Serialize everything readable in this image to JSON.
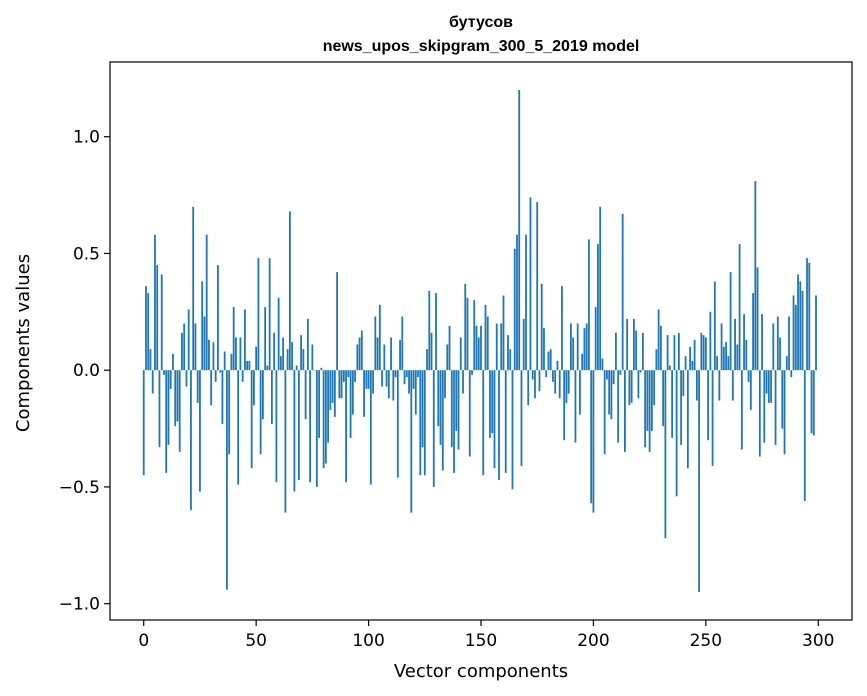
{
  "chart_data": {
    "type": "bar",
    "title": "бутусов",
    "subtitle": "news_upos_skipgram_300_5_2019 model",
    "xlabel": "Vector components",
    "ylabel": "Components values",
    "xlim": [
      -15,
      315
    ],
    "ylim": [
      -1.07,
      1.32
    ],
    "xticks": [
      0,
      50,
      100,
      150,
      200,
      250,
      300
    ],
    "yticks": [
      -1.0,
      -0.5,
      0.0,
      0.5,
      1.0
    ],
    "xtick_labels": [
      "0",
      "50",
      "100",
      "150",
      "200",
      "250",
      "300"
    ],
    "ytick_labels": [
      "−1.0",
      "−0.5",
      "0.0",
      "0.5",
      "1.0"
    ],
    "bar_color": "#1f77b4",
    "grid": false,
    "x_start": 0,
    "values": [
      -0.45,
      0.36,
      0.33,
      0.09,
      -0.1,
      0.58,
      0.45,
      -0.33,
      0.41,
      -0.02,
      -0.44,
      -0.32,
      -0.08,
      0.07,
      -0.24,
      -0.22,
      -0.35,
      0.16,
      0.2,
      -0.07,
      0.26,
      -0.6,
      0.7,
      0.2,
      -0.14,
      -0.52,
      0.38,
      0.23,
      0.58,
      0.13,
      -0.15,
      0.12,
      -0.05,
      0.45,
      -0.01,
      -0.23,
      0.08,
      -0.94,
      -0.36,
      0.07,
      0.27,
      0.14,
      -0.49,
      0.14,
      -0.05,
      0.26,
      0.04,
      0.04,
      -0.42,
      -0.15,
      0.1,
      0.48,
      -0.36,
      -0.21,
      0.27,
      0.02,
      0.48,
      -0.23,
      0.16,
      -0.48,
      0.31,
      0.06,
      0.14,
      -0.61,
      0.09,
      0.68,
      0.12,
      -0.52,
      0.02,
      -0.47,
      0.15,
      0.09,
      -0.21,
      0.22,
      -0.48,
      0.11,
      0.0,
      -0.5,
      -0.29,
      0.01,
      -0.42,
      -0.4,
      -0.31,
      -0.17,
      -0.14,
      -0.2,
      0.42,
      -0.12,
      -0.12,
      -0.05,
      -0.48,
      -0.03,
      -0.29,
      -0.19,
      -0.05,
      0.11,
      0.14,
      0.17,
      -0.2,
      -0.08,
      -0.08,
      -0.49,
      -0.1,
      0.23,
      0.14,
      0.28,
      -0.07,
      0.11,
      -0.07,
      -0.12,
      0.14,
      -0.13,
      -0.03,
      -0.46,
      0.13,
      0.23,
      -0.06,
      -0.03,
      -0.1,
      -0.61,
      -0.08,
      -0.19,
      -0.03,
      -0.45,
      -0.33,
      -0.45,
      0.09,
      0.34,
      0.16,
      -0.5,
      0.33,
      -0.24,
      -0.32,
      -0.43,
      -0.12,
      0.11,
      0.19,
      -0.33,
      -0.44,
      -0.26,
      -0.34,
      0.14,
      -0.1,
      0.37,
      0.31,
      -0.37,
      -0.02,
      0.3,
      0.19,
      0.14,
      0.19,
      -0.45,
      0.28,
      0.23,
      -0.29,
      -0.27,
      -0.42,
      0.2,
      -0.47,
      0.2,
      0.32,
      -0.44,
      0.15,
      0.09,
      -0.51,
      0.52,
      0.58,
      1.2,
      -0.41,
      0.22,
      0.58,
      -0.15,
      0.74,
      -0.04,
      -0.12,
      0.72,
      -0.09,
      0.37,
      0.18,
      -0.03,
      0.08,
      0.09,
      -0.05,
      -0.1,
      0.04,
      -0.12,
      0.36,
      -0.3,
      -0.14,
      -0.1,
      0.2,
      0.14,
      -0.31,
      0.2,
      -0.19,
      0.07,
      0.18,
      0.2,
      0.56,
      -0.57,
      -0.61,
      0.27,
      0.54,
      0.7,
      0.05,
      -0.36,
      -0.04,
      -0.19,
      -0.21,
      -0.06,
      0.16,
      -0.31,
      -0.02,
      0.67,
      -0.35,
      0.22,
      -0.15,
      -0.14,
      0.22,
      0.17,
      -0.12,
      -0.01,
      0.16,
      -0.33,
      -0.26,
      -0.35,
      -0.26,
      -0.15,
      0.09,
      0.26,
      0.19,
      -0.24,
      -0.72,
      0.15,
      0.02,
      -0.29,
      0.15,
      -0.54,
      0.16,
      -0.32,
      -0.11,
      0.06,
      -0.42,
      0.1,
      0.04,
      0.13,
      -0.13,
      -0.95,
      0.16,
      0.15,
      0.14,
      -0.3,
      0.25,
      -0.41,
      0.38,
      0.06,
      -0.13,
      0.2,
      0.1,
      0.12,
      0.06,
      0.42,
      -0.13,
      0.22,
      0.11,
      0.54,
      -0.34,
      0.24,
      0.13,
      -0.05,
      -0.17,
      0.33,
      0.81,
      0.44,
      -0.37,
      0.24,
      -0.31,
      -0.1,
      -0.14,
      -0.14,
      0.2,
      -0.32,
      0.23,
      0.14,
      -0.25,
      -0.36,
      0.06,
      0.23,
      -0.03,
      0.32,
      0.28,
      0.41,
      0.38,
      0.34,
      -0.56,
      0.48,
      0.46,
      -0.27,
      -0.28,
      0.32
    ]
  }
}
